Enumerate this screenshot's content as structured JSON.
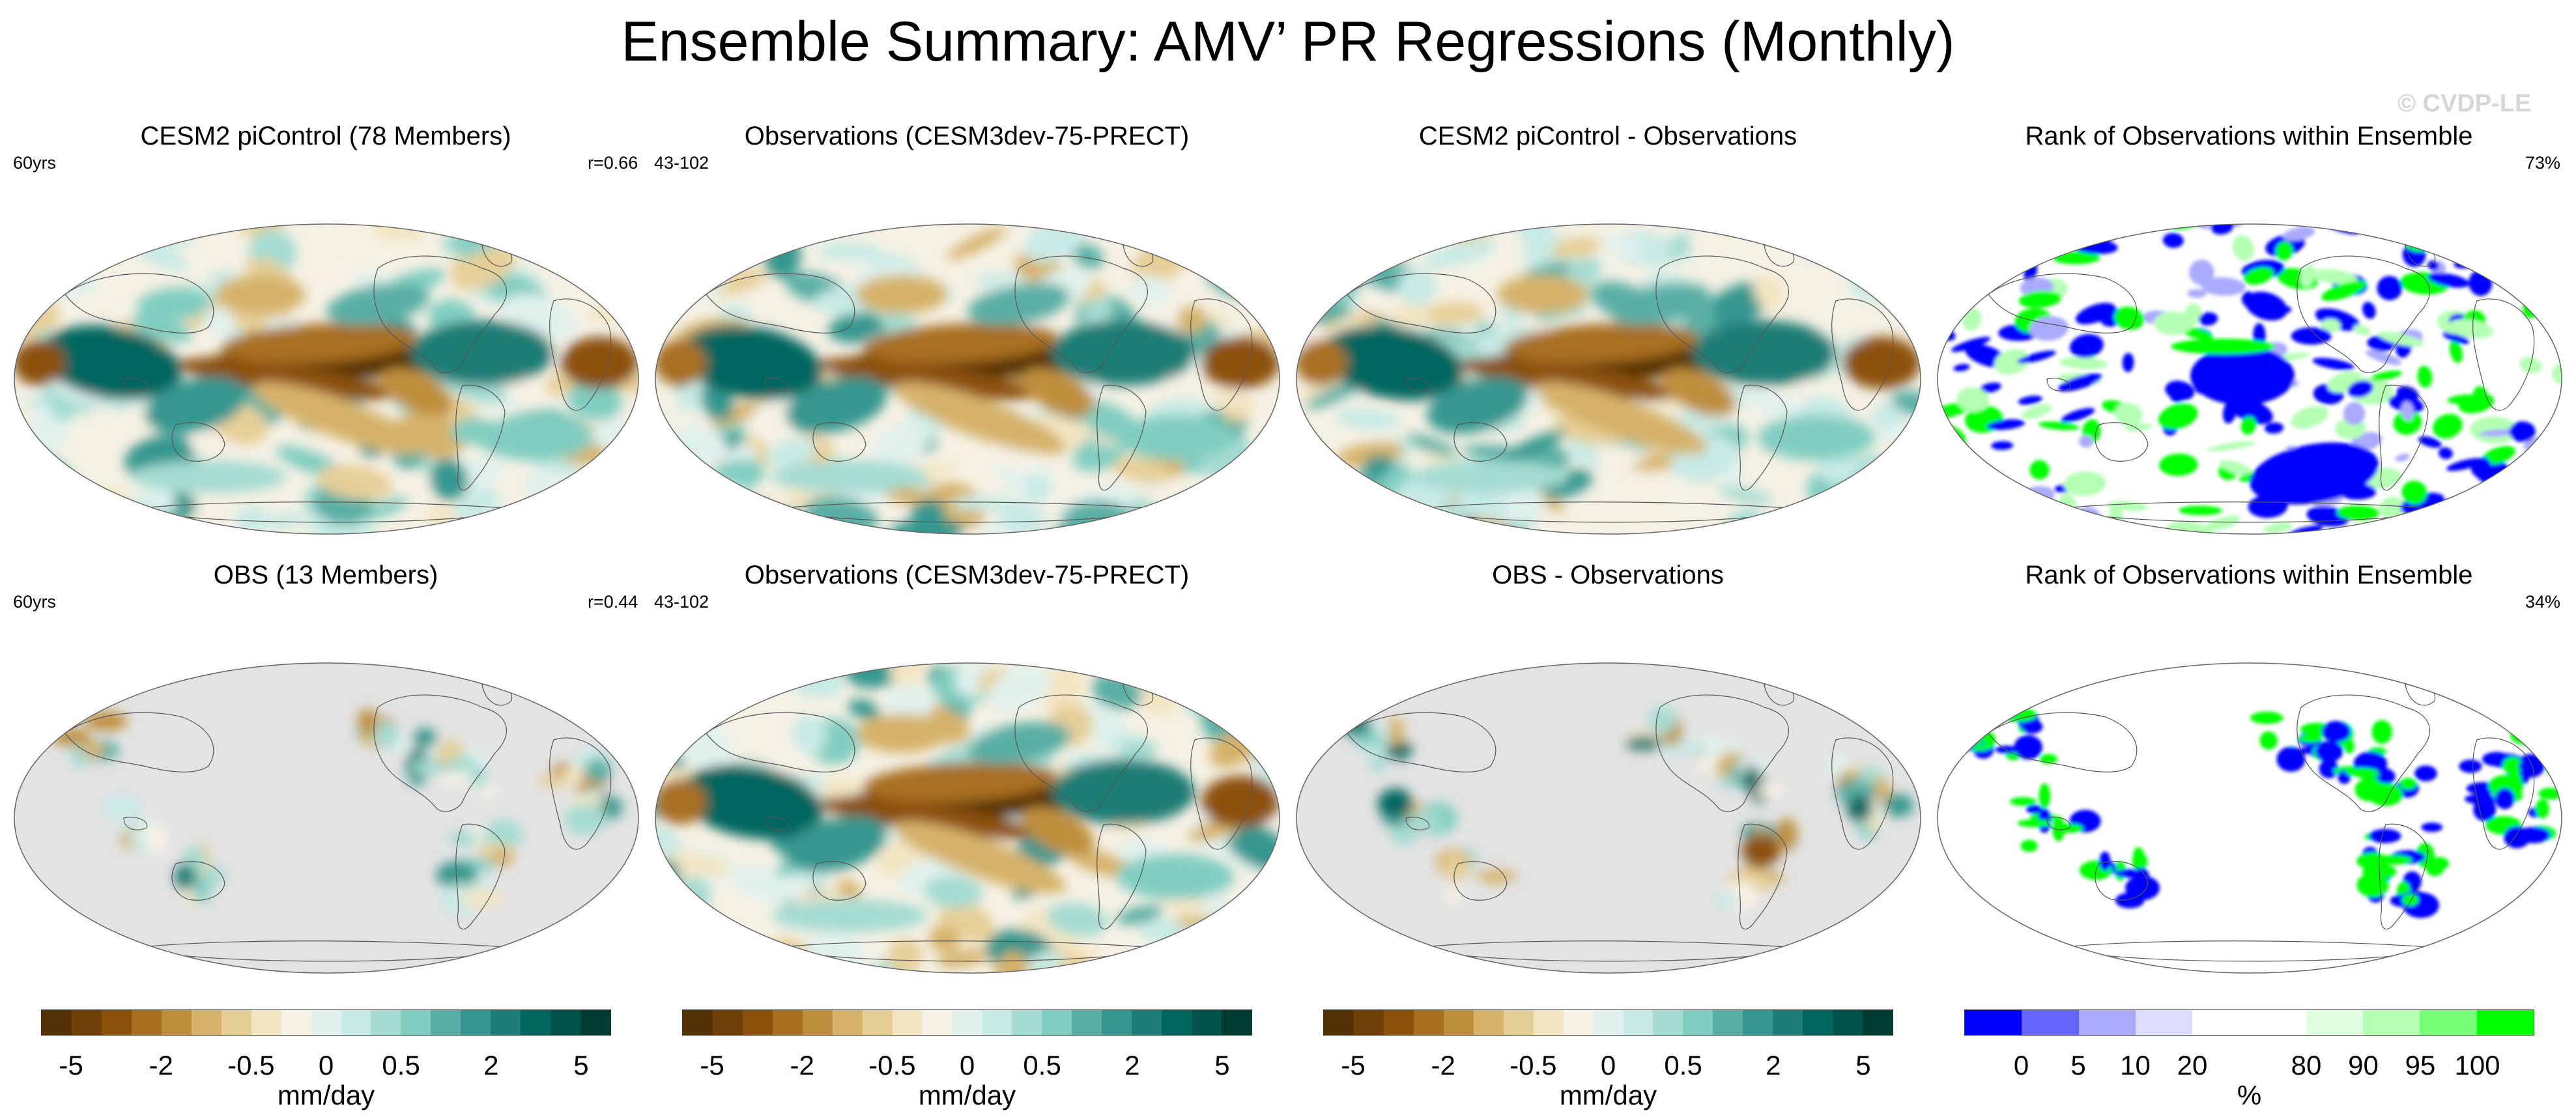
{
  "chart_data": {
    "type": "map-panels",
    "title": "Ensemble Summary: AMV’ PR Regressions (Monthly)",
    "watermark": "© CVDP-LE",
    "panels": [
      {
        "title": "CESM2 piControl (78 Members)",
        "left_label": "60yrs",
        "right_label": "r=0.66",
        "kind": "ensemble",
        "field": "regression"
      },
      {
        "title": "Observations (CESM3dev-75-PRECT)",
        "left_label": "43-102",
        "right_label": "",
        "kind": "obs",
        "field": "regression"
      },
      {
        "title": "CESM2 piControl - Observations",
        "left_label": "",
        "right_label": "",
        "kind": "difference",
        "field": "regression"
      },
      {
        "title": "Rank of Observations within Ensemble",
        "left_label": "",
        "right_label": "73%",
        "kind": "rank",
        "field": "rank"
      },
      {
        "title": "OBS (13 Members)",
        "left_label": "60yrs",
        "right_label": "r=0.44",
        "kind": "land-ensemble",
        "field": "regression"
      },
      {
        "title": "Observations (CESM3dev-75-PRECT)",
        "left_label": "43-102",
        "right_label": "",
        "kind": "obs2",
        "field": "regression"
      },
      {
        "title": "OBS - Observations",
        "left_label": "",
        "right_label": "",
        "kind": "land-difference",
        "field": "regression"
      },
      {
        "title": "Rank of Observations within Ensemble",
        "left_label": "",
        "right_label": "34%",
        "kind": "land-rank",
        "field": "rank"
      }
    ],
    "colorbars": [
      {
        "unit": "mm/day",
        "tick_labels": [
          "-5",
          "-2",
          "-0.5",
          "0",
          "0.5",
          "2",
          "5"
        ],
        "colors": [
          "#543005",
          "#6f4109",
          "#8c510a",
          "#a86f20",
          "#bf8f3e",
          "#d6b26a",
          "#e6cf97",
          "#f3e5c2",
          "#f5f1e4",
          "#e0f1ed",
          "#c7eae5",
          "#a4dbd2",
          "#80cdc1",
          "#5aafa5",
          "#35978f",
          "#1e7d74",
          "#01665e",
          "#00524a",
          "#003c30"
        ]
      },
      {
        "unit": "mm/day",
        "tick_labels": [
          "-5",
          "-2",
          "-0.5",
          "0",
          "0.5",
          "2",
          "5"
        ],
        "colors": [
          "#543005",
          "#6f4109",
          "#8c510a",
          "#a86f20",
          "#bf8f3e",
          "#d6b26a",
          "#e6cf97",
          "#f3e5c2",
          "#f5f1e4",
          "#e0f1ed",
          "#c7eae5",
          "#a4dbd2",
          "#80cdc1",
          "#5aafa5",
          "#35978f",
          "#1e7d74",
          "#01665e",
          "#00524a",
          "#003c30"
        ]
      },
      {
        "unit": "mm/day",
        "tick_labels": [
          "-5",
          "-2",
          "-0.5",
          "0",
          "0.5",
          "2",
          "5"
        ],
        "colors": [
          "#543005",
          "#6f4109",
          "#8c510a",
          "#a86f20",
          "#bf8f3e",
          "#d6b26a",
          "#e6cf97",
          "#f3e5c2",
          "#f5f1e4",
          "#e0f1ed",
          "#c7eae5",
          "#a4dbd2",
          "#80cdc1",
          "#5aafa5",
          "#35978f",
          "#1e7d74",
          "#01665e",
          "#00524a",
          "#003c30"
        ]
      },
      {
        "unit": "%",
        "tick_labels": [
          "0",
          "5",
          "10",
          "20",
          "80",
          "90",
          "95",
          "100"
        ],
        "colors": [
          "#0000ff",
          "#6666ff",
          "#aaaaff",
          "#dcdcff",
          "#ffffff",
          "#ffffff",
          "#e0ffe0",
          "#b4ffb4",
          "#78ff78",
          "#00ff00"
        ]
      }
    ]
  }
}
